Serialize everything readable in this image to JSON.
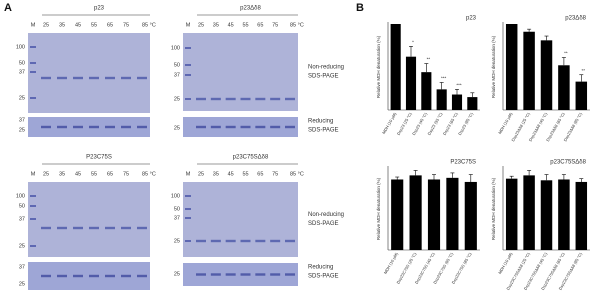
{
  "panel_labels": [
    "A",
    "B"
  ],
  "gels": [
    {
      "title": "p23",
      "lanes": [
        "M",
        "25",
        "35",
        "45",
        "55",
        "65",
        "75",
        "85 °C"
      ],
      "markers": [
        100,
        50,
        37,
        25
      ],
      "reduced_markers": [
        37,
        25
      ]
    },
    {
      "title": "p23Δδ8",
      "lanes": [
        "M",
        "25",
        "35",
        "45",
        "55",
        "65",
        "75",
        "85 °C"
      ],
      "markers": [
        100,
        50,
        37,
        25
      ],
      "reduced_markers": [
        25
      ],
      "labels": [
        "Non-reducing",
        "SDS-PAGE"
      ],
      "reduced_labels": [
        "Reducing",
        "SDS-PAGE"
      ]
    },
    {
      "title": "P23C75S",
      "lanes": [
        "M",
        "25",
        "35",
        "45",
        "55",
        "65",
        "75",
        "85 °C"
      ],
      "markers": [
        100,
        50,
        37,
        25
      ],
      "reduced_markers": [
        37,
        25
      ]
    },
    {
      "title": "p23C75SΔδ8",
      "lanes": [
        "M",
        "25",
        "35",
        "45",
        "55",
        "65",
        "75",
        "85 °C"
      ],
      "markers": [
        100,
        50,
        37,
        25
      ],
      "reduced_markers": [
        25
      ],
      "labels": [
        "Non-reducing",
        "SDS-PAGE"
      ],
      "reduced_labels": [
        "Reducing",
        "SDS-PAGE"
      ]
    }
  ],
  "chart_data": [
    {
      "type": "bar",
      "title": "p23",
      "y_label": "Relative MDH denaturation (%)",
      "color": "#000000",
      "ylim": [
        0,
        100
      ],
      "categories": [
        "MDH (10 µM)",
        "Dsp23 (25 °C)",
        "Dsp23 (45 °C)",
        "Dsp23 (55 °C)",
        "Dsp23 (65 °C)",
        "Dsp23 (85 °C)"
      ],
      "values": [
        100,
        62,
        44,
        24,
        18,
        15
      ],
      "errors": [
        0,
        12,
        10,
        8,
        6,
        5
      ],
      "annotations": [
        null,
        "*",
        "**",
        "***",
        "***",
        null
      ]
    },
    {
      "type": "bar",
      "title": "p23Δδ8",
      "y_label": "Relative MDH denaturation (%)",
      "color": "#000000",
      "ylim": [
        0,
        100
      ],
      "categories": [
        "MDH (10 µM)",
        "Dsp23Δδ8 (25 °C)",
        "Dsp23Δδ8 (45 °C)",
        "Dsp23Δδ8 (65 °C)",
        "Dsp23Δδ8 (85 °C)"
      ],
      "values": [
        100,
        91,
        81,
        52,
        33
      ],
      "errors": [
        0,
        3,
        5,
        9,
        8
      ],
      "annotations": [
        null,
        null,
        null,
        "**",
        "**"
      ]
    },
    {
      "type": "bar",
      "title": "P23C75S",
      "y_label": "Relative MDH denaturation (%)",
      "color": "#000000",
      "ylim": [
        0,
        100
      ],
      "categories": [
        "MDH (10 µM)",
        "Dsp23C75S (25 °C)",
        "Dsp23C75S (45 °C)",
        "Dsp23C75S (65 °C)",
        "Dsp23C75S (85 °C)"
      ],
      "values": [
        86,
        91,
        86,
        88,
        83
      ],
      "errors": [
        3,
        6,
        6,
        6,
        9
      ],
      "annotations": [
        null,
        null,
        null,
        null,
        null
      ]
    },
    {
      "type": "bar",
      "title": "p23C75SΔδ8",
      "y_label": "Relative MDH denaturation (%)",
      "color": "#000000",
      "ylim": [
        0,
        100
      ],
      "categories": [
        "MDH (10 µM)",
        "Dsp23C75SΔδ8 (25 °C)",
        "Dsp23C75SΔδ8 (45 °C)",
        "Dsp23C75SΔδ8 (65 °C)",
        "Dsp23C75SΔδ8 (85 °C)"
      ],
      "values": [
        87,
        91,
        85,
        86,
        83
      ],
      "errors": [
        3,
        6,
        7,
        6,
        4
      ],
      "annotations": [
        null,
        null,
        null,
        null,
        null
      ]
    }
  ]
}
